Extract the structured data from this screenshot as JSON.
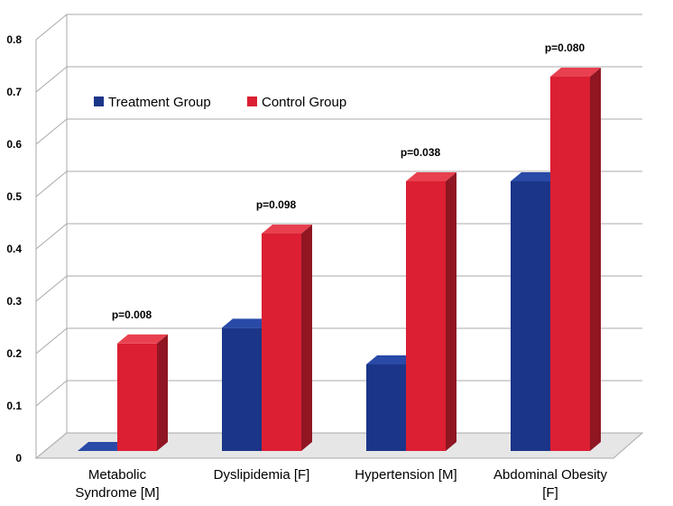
{
  "chart_data": {
    "type": "bar",
    "title": "",
    "xlabel": "",
    "ylabel": "",
    "ylim": [
      0,
      0.8
    ],
    "yticks": [
      "0",
      "0.1",
      "0.2",
      "0.3",
      "0.4",
      "0.5",
      "0.6",
      "0.7",
      "0.8"
    ],
    "categories": [
      [
        "Metabolic",
        "Syndrome [M]"
      ],
      [
        "Dyslipidemia [F]"
      ],
      [
        "Hypertension [M]"
      ],
      [
        "Abdominal Obesity",
        "[F]"
      ]
    ],
    "series": [
      {
        "name": "Treatment Group",
        "values": [
          0.0,
          0.27,
          0.2,
          0.55
        ]
      },
      {
        "name": "Control Group",
        "values": [
          0.24,
          0.45,
          0.55,
          0.75
        ]
      }
    ],
    "annotations": [
      "p=0.008",
      "p=0.098",
      "p=0.038",
      "p=0.080"
    ],
    "legend_position": "top-left",
    "grid": true,
    "colors": {
      "treatment": "#1b3588",
      "treatment_top": "#2a4aa8",
      "treatment_side": "#0e1f5a",
      "control": "#dc1f32",
      "control_top": "#e8404f",
      "control_side": "#8f1622",
      "grid": "#a8a8a8"
    }
  }
}
